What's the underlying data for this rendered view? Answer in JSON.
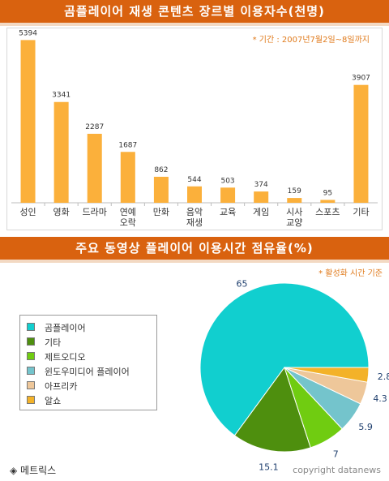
{
  "chart_data": [
    {
      "type": "bar",
      "title": "곰플레이어 재생 콘텐츠 장르별 이용자수(천명)",
      "note": "* 기간 : 2007년7월2일~8일까지",
      "categories": [
        "성인",
        "영화",
        "드라마",
        "연예\n오락",
        "만화",
        "음악\n재생",
        "교육",
        "게임",
        "시사\n교양",
        "스포츠",
        "기타"
      ],
      "values": [
        5394,
        3341,
        2287,
        1687,
        862,
        544,
        503,
        374,
        159,
        95,
        3907
      ],
      "value_labels": [
        "5394",
        "3341",
        "2287",
        "1687",
        "862",
        "544",
        "503",
        "374",
        "159",
        "95",
        "3907"
      ],
      "ylim": [
        0,
        5700
      ],
      "color": "#fbb03b"
    },
    {
      "type": "pie",
      "title": "주요 동영상 플레이어 이용시간 점유율(%)",
      "note": "* 활성화 시간 기준",
      "labels": [
        "곰플레이어",
        "기타",
        "제트오디오",
        "윈도우미디어 플레이어",
        "아프리카",
        "알쇼"
      ],
      "values": [
        65,
        15.1,
        7,
        5.9,
        4.3,
        2.8
      ],
      "value_labels": [
        "65",
        "15.1",
        "7",
        "5.9",
        "4.3",
        "2.8"
      ],
      "colors": [
        "#11cfcf",
        "#4e8f0e",
        "#70cc11",
        "#74c4cc",
        "#eec79a",
        "#f3b229"
      ]
    }
  ],
  "footer": {
    "source": "◈ 메트릭스",
    "copyright": "copyright datanews"
  }
}
